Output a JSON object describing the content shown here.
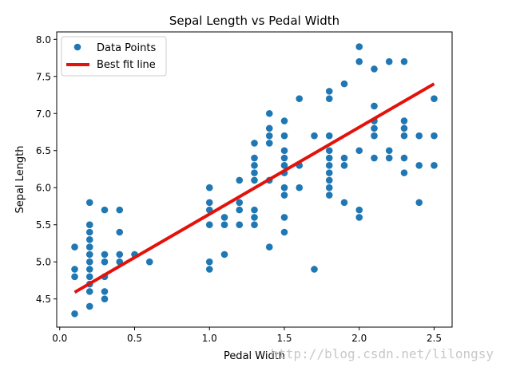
{
  "chart_data": {
    "type": "scatter",
    "title": "Sepal Length vs Pedal Width",
    "xlabel": "Pedal Width",
    "ylabel": "Sepal Length",
    "xlim": [
      -0.02,
      2.62
    ],
    "ylim": [
      4.12,
      8.1
    ],
    "x_ticks": [
      "0.0",
      "0.5",
      "1.0",
      "1.5",
      "2.0",
      "2.5"
    ],
    "y_ticks": [
      "4.5",
      "5.0",
      "5.5",
      "6.0",
      "6.5",
      "7.0",
      "7.5",
      "8.0"
    ],
    "grid": false,
    "legend_position": "top-left",
    "series": [
      {
        "name": "Data Points",
        "kind": "scatter",
        "color": "#1f77b4",
        "points": [
          [
            0.1,
            4.3
          ],
          [
            0.1,
            4.8
          ],
          [
            0.1,
            4.9
          ],
          [
            0.1,
            5.2
          ],
          [
            0.2,
            4.4
          ],
          [
            0.2,
            4.6
          ],
          [
            0.2,
            4.7
          ],
          [
            0.2,
            4.8
          ],
          [
            0.2,
            4.9
          ],
          [
            0.2,
            5.0
          ],
          [
            0.2,
            5.1
          ],
          [
            0.2,
            5.2
          ],
          [
            0.2,
            5.3
          ],
          [
            0.2,
            5.4
          ],
          [
            0.2,
            5.5
          ],
          [
            0.2,
            5.8
          ],
          [
            0.3,
            4.5
          ],
          [
            0.3,
            4.6
          ],
          [
            0.3,
            4.8
          ],
          [
            0.3,
            5.0
          ],
          [
            0.3,
            5.1
          ],
          [
            0.3,
            5.7
          ],
          [
            0.4,
            5.0
          ],
          [
            0.4,
            5.1
          ],
          [
            0.4,
            5.4
          ],
          [
            0.4,
            5.7
          ],
          [
            0.5,
            5.1
          ],
          [
            0.6,
            5.0
          ],
          [
            1.0,
            4.9
          ],
          [
            1.0,
            5.0
          ],
          [
            1.0,
            5.5
          ],
          [
            1.0,
            5.7
          ],
          [
            1.0,
            5.8
          ],
          [
            1.0,
            6.0
          ],
          [
            1.1,
            5.1
          ],
          [
            1.1,
            5.5
          ],
          [
            1.1,
            5.6
          ],
          [
            1.2,
            5.5
          ],
          [
            1.2,
            5.7
          ],
          [
            1.2,
            5.8
          ],
          [
            1.2,
            6.1
          ],
          [
            1.3,
            5.5
          ],
          [
            1.3,
            5.6
          ],
          [
            1.3,
            5.7
          ],
          [
            1.3,
            6.1
          ],
          [
            1.3,
            6.2
          ],
          [
            1.3,
            6.3
          ],
          [
            1.3,
            6.4
          ],
          [
            1.3,
            6.6
          ],
          [
            1.4,
            5.2
          ],
          [
            1.4,
            6.1
          ],
          [
            1.4,
            6.6
          ],
          [
            1.4,
            6.7
          ],
          [
            1.4,
            6.8
          ],
          [
            1.4,
            7.0
          ],
          [
            1.5,
            5.4
          ],
          [
            1.5,
            5.6
          ],
          [
            1.5,
            5.9
          ],
          [
            1.5,
            6.0
          ],
          [
            1.5,
            6.2
          ],
          [
            1.5,
            6.3
          ],
          [
            1.5,
            6.4
          ],
          [
            1.5,
            6.5
          ],
          [
            1.5,
            6.7
          ],
          [
            1.5,
            6.9
          ],
          [
            1.6,
            6.0
          ],
          [
            1.6,
            6.3
          ],
          [
            1.6,
            7.2
          ],
          [
            1.7,
            4.9
          ],
          [
            1.7,
            6.7
          ],
          [
            1.8,
            5.9
          ],
          [
            1.8,
            6.0
          ],
          [
            1.8,
            6.1
          ],
          [
            1.8,
            6.2
          ],
          [
            1.8,
            6.3
          ],
          [
            1.8,
            6.4
          ],
          [
            1.8,
            6.5
          ],
          [
            1.8,
            6.7
          ],
          [
            1.8,
            7.2
          ],
          [
            1.8,
            7.3
          ],
          [
            1.9,
            5.8
          ],
          [
            1.9,
            6.3
          ],
          [
            1.9,
            6.4
          ],
          [
            1.9,
            7.4
          ],
          [
            2.0,
            5.6
          ],
          [
            2.0,
            5.7
          ],
          [
            2.0,
            6.5
          ],
          [
            2.0,
            7.7
          ],
          [
            2.0,
            7.9
          ],
          [
            2.1,
            6.4
          ],
          [
            2.1,
            6.7
          ],
          [
            2.1,
            6.8
          ],
          [
            2.1,
            6.9
          ],
          [
            2.1,
            7.1
          ],
          [
            2.1,
            7.6
          ],
          [
            2.2,
            6.4
          ],
          [
            2.2,
            6.5
          ],
          [
            2.2,
            7.7
          ],
          [
            2.3,
            6.2
          ],
          [
            2.3,
            6.4
          ],
          [
            2.3,
            6.7
          ],
          [
            2.3,
            6.8
          ],
          [
            2.3,
            6.9
          ],
          [
            2.3,
            7.7
          ],
          [
            2.4,
            5.8
          ],
          [
            2.4,
            6.3
          ],
          [
            2.4,
            6.7
          ],
          [
            2.5,
            6.3
          ],
          [
            2.5,
            6.7
          ],
          [
            2.5,
            7.2
          ]
        ]
      },
      {
        "name": "Best fit line",
        "kind": "line",
        "color": "#e3120b",
        "points": [
          [
            0.1,
            4.59
          ],
          [
            2.5,
            7.4
          ]
        ]
      }
    ]
  },
  "watermark": "http://blog.csdn.net/lilongsy"
}
